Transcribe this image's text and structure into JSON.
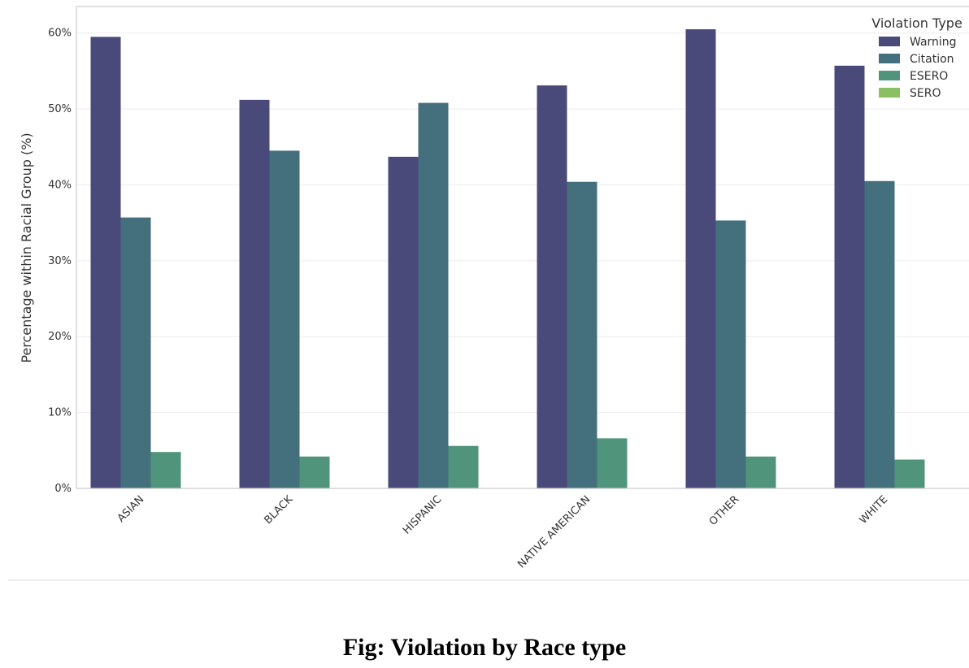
{
  "caption": "Fig: Violation by Race type",
  "chart_data": {
    "type": "bar",
    "title": "",
    "xlabel": "",
    "ylabel": "Percentage within Racial Group (%)",
    "ylim": [
      0,
      63.5
    ],
    "yticks": [
      0,
      10,
      20,
      30,
      40,
      50,
      60
    ],
    "ytick_labels": [
      "0%",
      "10%",
      "20%",
      "30%",
      "40%",
      "50%",
      "60%"
    ],
    "grid": true,
    "legend_title": "Violation Type",
    "legend_position": "top-right",
    "categories": [
      "ASIAN",
      "BLACK",
      "HISPANIC",
      "NATIVE AMERICAN",
      "OTHER",
      "WHITE"
    ],
    "series": [
      {
        "name": "Warning",
        "color": "#4a4a7a",
        "values": [
          59.5,
          51.2,
          43.7,
          53.1,
          60.5,
          55.7
        ]
      },
      {
        "name": "Citation",
        "color": "#44707e",
        "values": [
          35.7,
          44.5,
          50.8,
          40.4,
          35.3,
          40.5
        ]
      },
      {
        "name": "ESERO",
        "color": "#50957b",
        "values": [
          4.8,
          4.2,
          5.6,
          6.6,
          4.2,
          3.8
        ]
      },
      {
        "name": "SERO",
        "color": "#8abf62",
        "values": [
          0,
          0,
          0,
          0,
          0,
          0
        ]
      }
    ]
  }
}
